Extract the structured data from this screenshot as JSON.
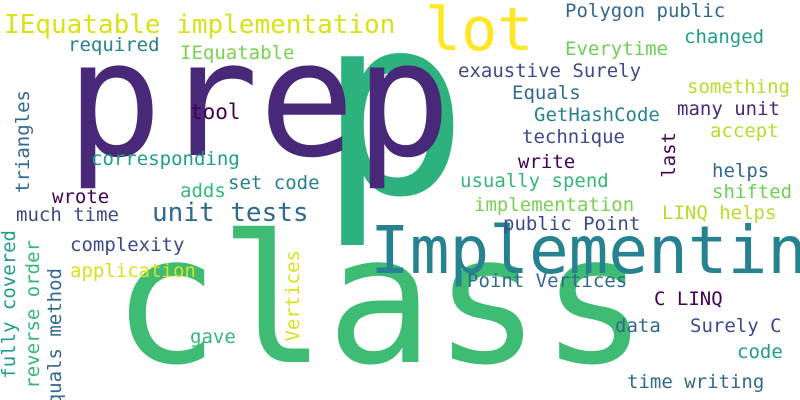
{
  "colors": {
    "background": "#ffffff",
    "palette": [
      "#440154",
      "#482878",
      "#3e4989",
      "#31688e",
      "#26828e",
      "#1f9e89",
      "#35b779",
      "#6ece58",
      "#b5de2b",
      "#fde725"
    ]
  },
  "words": {
    "p": "p",
    "prep": "prep",
    "class": "class",
    "implementing": "Implementing",
    "lot": "lot",
    "iequatable_impl": "IEquatable implementation",
    "required": "required",
    "iequatable": "IEquatable",
    "polygon_public": "Polygon public",
    "everytime": "Everytime",
    "changed": "changed",
    "exaustive_surely": "exaustive Surely",
    "something": "something",
    "equals": "Equals",
    "many_unit": "many unit",
    "gethashcode": "GetHashCode",
    "tool": "tool",
    "accept": "accept",
    "technique": "technique",
    "triangles": "triangles",
    "corresponding": "corresponding",
    "write": "write",
    "last": "last",
    "helps": "helps",
    "set_code": "set code",
    "usually_spend": "usually spend",
    "adds": "adds",
    "shifted": "shifted",
    "wrote": "wrote",
    "implementation": "implementation",
    "unit_tests": "unit tests",
    "linq_helps": "LINQ helps",
    "much_time": "much time",
    "public_point": "public Point",
    "complexity": "complexity",
    "fully_covered": "fully covered",
    "reverse_order": "reverse order",
    "equals_method": "Equals method",
    "application": "application",
    "vertices": "Vertices",
    "point_vertices": "Point Vertices",
    "c_linq": "C LINQ",
    "gave": "gave",
    "data": "data",
    "surely_c": "Surely C",
    "code": "code",
    "time_writing": "time writing"
  }
}
